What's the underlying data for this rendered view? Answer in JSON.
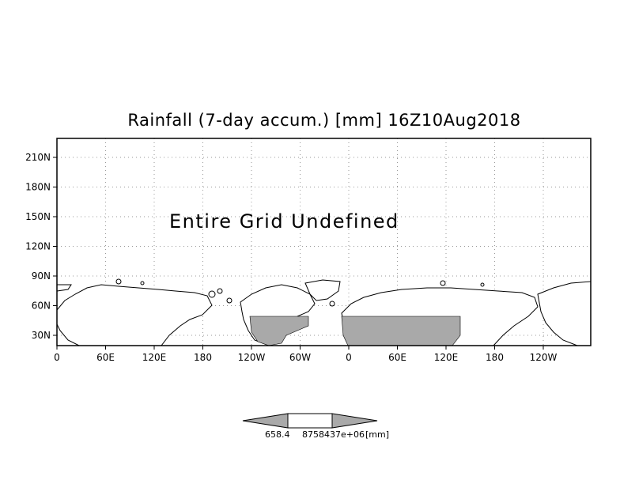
{
  "title": "Rainfall (7-day accum.) [mm] 16Z10Aug2018",
  "message": "Entire Grid Undefined",
  "axes": {
    "x_ticks": [
      "0",
      "60E",
      "120E",
      "180",
      "120W",
      "60W",
      "0",
      "60E",
      "120E",
      "180",
      "120W"
    ],
    "y_ticks": [
      "30N",
      "60N",
      "90N",
      "120N",
      "150N",
      "180N",
      "210N"
    ]
  },
  "colorbar": {
    "labels": [
      "658.4",
      "8758437e+06",
      "[mm]"
    ]
  },
  "colors": {
    "shaded": "#a9a9a9",
    "land_fill": "#ffffff",
    "coast": "#000000",
    "grid": "#9a9a9a"
  },
  "shaded_regions": [
    "North America",
    "Eurasia (40N–50N band)"
  ]
}
